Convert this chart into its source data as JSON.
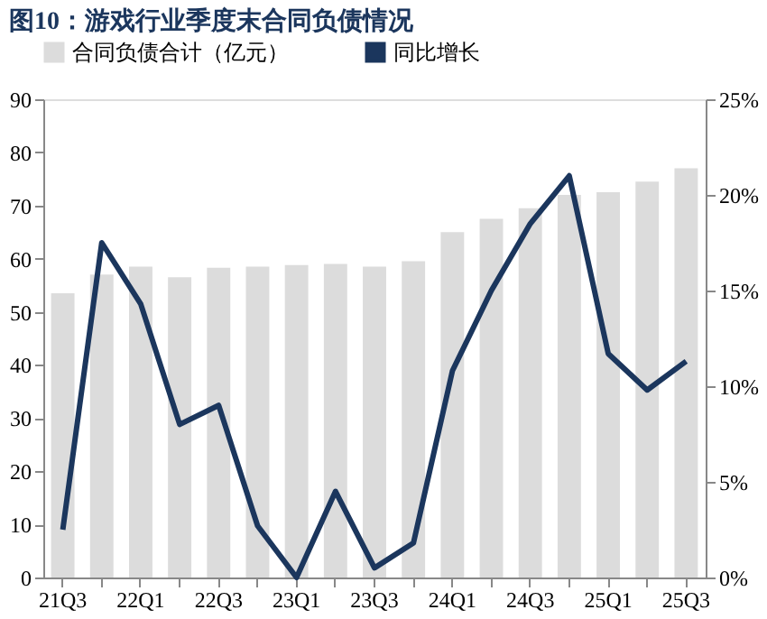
{
  "chart_data": {
    "type": "bar",
    "title": "图10：游戏行业季度末合同负债情况",
    "categories": [
      "21Q3",
      null,
      "22Q1",
      null,
      "22Q3",
      null,
      "23Q1",
      null,
      "23Q3",
      null,
      "24Q1",
      null,
      "24Q3",
      null,
      "25Q1",
      null,
      "25Q3"
    ],
    "series": [
      {
        "name": "合同负债合计（亿元）",
        "color": "#dcdcdc",
        "values": [
          53.5,
          57,
          58.5,
          56.5,
          58.3,
          58.5,
          58.8,
          59,
          58.5,
          59.5,
          65,
          67.5,
          69.5,
          72,
          72.5,
          74.5,
          77
        ]
      },
      {
        "name": "同比增长",
        "type": "line",
        "axis": "y2",
        "color": "#1b365d",
        "values": [
          2.5,
          17.5,
          14.3,
          8,
          9,
          2.7,
          0,
          4.5,
          0.5,
          1.8,
          10.8,
          15,
          18.5,
          21,
          11.7,
          9.8,
          11.3
        ]
      }
    ],
    "ylim": [
      0,
      90
    ],
    "yticks": [
      0,
      10,
      20,
      30,
      40,
      50,
      60,
      70,
      80,
      90
    ],
    "y2lim": [
      0,
      25
    ],
    "y2ticks": [
      {
        "value": 0,
        "label": "0%"
      },
      {
        "value": 5,
        "label": "5%"
      },
      {
        "value": 10,
        "label": "10%"
      },
      {
        "value": 15,
        "label": "15%"
      },
      {
        "value": 20,
        "label": "20%"
      },
      {
        "value": 25,
        "label": "25%"
      }
    ],
    "legend": "top",
    "grid": false
  }
}
